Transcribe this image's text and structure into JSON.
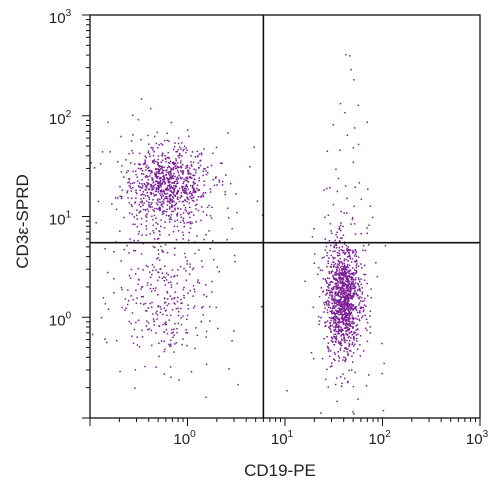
{
  "chart_data": {
    "type": "scatter",
    "title": "",
    "xlabel": "CD19-PE",
    "ylabel": "CD3ε-SPRD",
    "x_scale": "log",
    "y_scale": "log",
    "xlim": [
      0.1,
      1000
    ],
    "ylim": [
      0.1,
      1000
    ],
    "x_ticks": [
      {
        "value": 1,
        "base": "10",
        "exp": "0"
      },
      {
        "value": 10,
        "base": "10",
        "exp": "1"
      },
      {
        "value": 100,
        "base": "10",
        "exp": "2"
      },
      {
        "value": 1000,
        "base": "10",
        "exp": "3"
      }
    ],
    "y_ticks": [
      {
        "value": 1,
        "base": "10",
        "exp": "0"
      },
      {
        "value": 10,
        "base": "10",
        "exp": "1"
      },
      {
        "value": 100,
        "base": "10",
        "exp": "2"
      },
      {
        "value": 1000,
        "base": "10",
        "exp": "3"
      }
    ],
    "gates": {
      "x": 6.0,
      "y": 5.5
    },
    "point_color": "#7b1f95",
    "populations": [
      {
        "center_x": 0.6,
        "center_y": 20,
        "spread_x": 0.22,
        "spread_y": 0.2,
        "count": 900
      },
      {
        "center_x": 0.6,
        "center_y": 1.5,
        "spread_x": 0.25,
        "spread_y": 0.3,
        "count": 320
      },
      {
        "center_x": 40,
        "center_y": 1.5,
        "spread_x": 0.09,
        "spread_y": 0.28,
        "count": 1200
      },
      {
        "center_x": 40,
        "center_y": 40,
        "spread_x": 0.08,
        "spread_y": 0.45,
        "count": 35
      }
    ]
  }
}
